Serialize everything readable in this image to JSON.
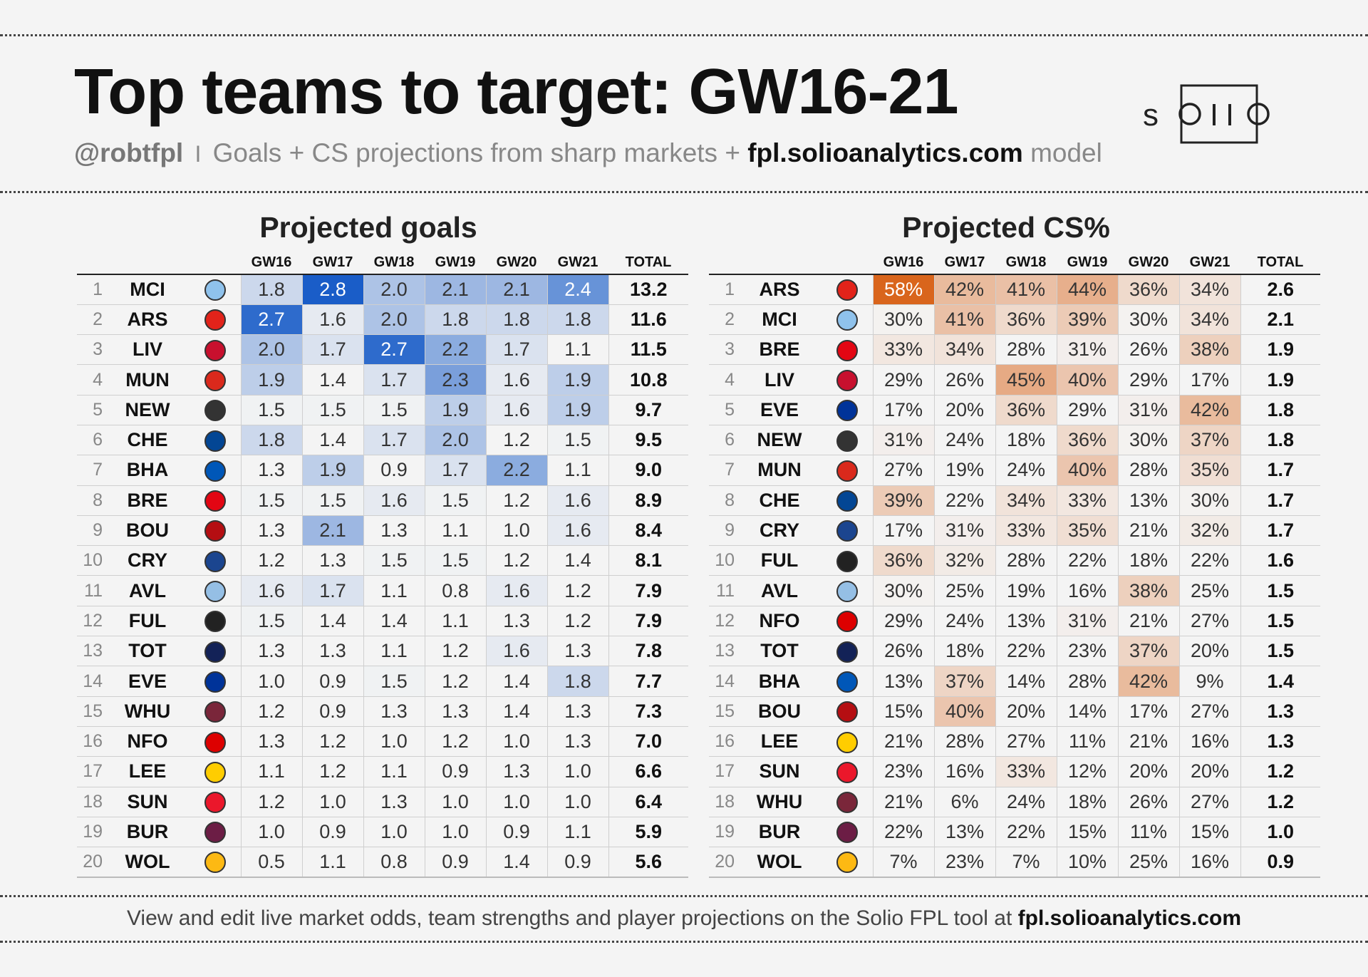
{
  "header": {
    "title": "Top teams to target: GW16-21",
    "handle": "@robtfpl",
    "separator": "I",
    "subtitle_text": "Goals + CS projections from sharp markets + ",
    "site": "fpl.solioanalytics.com",
    "subtitle_end": " model",
    "brand": "solio"
  },
  "footer": {
    "text": "View and edit live market odds, team strengths and player projections on the Solio FPL tool at ",
    "site": "fpl.solioanalytics.com"
  },
  "colors": {
    "goals_accent": "#1a5dc8",
    "cs_accent": "#d9651c"
  },
  "chart_data": [
    {
      "type": "table",
      "title": "Projected goals",
      "columns": [
        "GW16",
        "GW17",
        "GW18",
        "GW19",
        "GW20",
        "GW21",
        "TOTAL"
      ],
      "rows": [
        {
          "rank": "1",
          "team": "MCI",
          "crest": "#8fc2ec",
          "values": [
            "1.8",
            "2.8",
            "2.0",
            "2.1",
            "2.1",
            "2.4"
          ],
          "total": "13.2"
        },
        {
          "rank": "2",
          "team": "ARS",
          "crest": "#e2231a",
          "values": [
            "2.7",
            "1.6",
            "2.0",
            "1.8",
            "1.8",
            "1.8"
          ],
          "total": "11.6"
        },
        {
          "rank": "3",
          "team": "LIV",
          "crest": "#c8102e",
          "values": [
            "2.0",
            "1.7",
            "2.7",
            "2.2",
            "1.7",
            "1.1"
          ],
          "total": "11.5"
        },
        {
          "rank": "4",
          "team": "MUN",
          "crest": "#da291c",
          "values": [
            "1.9",
            "1.4",
            "1.7",
            "2.3",
            "1.6",
            "1.9"
          ],
          "total": "10.8"
        },
        {
          "rank": "5",
          "team": "NEW",
          "crest": "#333333",
          "values": [
            "1.5",
            "1.5",
            "1.5",
            "1.9",
            "1.6",
            "1.9"
          ],
          "total": "9.7"
        },
        {
          "rank": "6",
          "team": "CHE",
          "crest": "#034694",
          "values": [
            "1.8",
            "1.4",
            "1.7",
            "2.0",
            "1.2",
            "1.5"
          ],
          "total": "9.5"
        },
        {
          "rank": "7",
          "team": "BHA",
          "crest": "#0057b8",
          "values": [
            "1.3",
            "1.9",
            "0.9",
            "1.7",
            "2.2",
            "1.1"
          ],
          "total": "9.0"
        },
        {
          "rank": "8",
          "team": "BRE",
          "crest": "#e30613",
          "values": [
            "1.5",
            "1.5",
            "1.6",
            "1.5",
            "1.2",
            "1.6"
          ],
          "total": "8.9"
        },
        {
          "rank": "9",
          "team": "BOU",
          "crest": "#b50e12",
          "values": [
            "1.3",
            "2.1",
            "1.3",
            "1.1",
            "1.0",
            "1.6"
          ],
          "total": "8.4"
        },
        {
          "rank": "10",
          "team": "CRY",
          "crest": "#1b458f",
          "values": [
            "1.2",
            "1.3",
            "1.5",
            "1.5",
            "1.2",
            "1.4"
          ],
          "total": "8.1"
        },
        {
          "rank": "11",
          "team": "AVL",
          "crest": "#95bfe5",
          "values": [
            "1.6",
            "1.7",
            "1.1",
            "0.8",
            "1.6",
            "1.2"
          ],
          "total": "7.9"
        },
        {
          "rank": "12",
          "team": "FUL",
          "crest": "#222222",
          "values": [
            "1.5",
            "1.4",
            "1.4",
            "1.1",
            "1.3",
            "1.2"
          ],
          "total": "7.9"
        },
        {
          "rank": "13",
          "team": "TOT",
          "crest": "#132257",
          "values": [
            "1.3",
            "1.3",
            "1.1",
            "1.2",
            "1.6",
            "1.3"
          ],
          "total": "7.8"
        },
        {
          "rank": "14",
          "team": "EVE",
          "crest": "#003399",
          "values": [
            "1.0",
            "0.9",
            "1.5",
            "1.2",
            "1.4",
            "1.8"
          ],
          "total": "7.7"
        },
        {
          "rank": "15",
          "team": "WHU",
          "crest": "#7a263a",
          "values": [
            "1.2",
            "0.9",
            "1.3",
            "1.3",
            "1.4",
            "1.3"
          ],
          "total": "7.3"
        },
        {
          "rank": "16",
          "team": "NFO",
          "crest": "#dd0000",
          "values": [
            "1.3",
            "1.2",
            "1.0",
            "1.2",
            "1.0",
            "1.3"
          ],
          "total": "7.0"
        },
        {
          "rank": "17",
          "team": "LEE",
          "crest": "#ffcd00",
          "values": [
            "1.1",
            "1.2",
            "1.1",
            "0.9",
            "1.3",
            "1.0"
          ],
          "total": "6.6"
        },
        {
          "rank": "18",
          "team": "SUN",
          "crest": "#eb172b",
          "values": [
            "1.2",
            "1.0",
            "1.3",
            "1.0",
            "1.0",
            "1.0"
          ],
          "total": "6.4"
        },
        {
          "rank": "19",
          "team": "BUR",
          "crest": "#6c1d45",
          "values": [
            "1.0",
            "0.9",
            "1.0",
            "1.0",
            "0.9",
            "1.1"
          ],
          "total": "5.9"
        },
        {
          "rank": "20",
          "team": "WOL",
          "crest": "#fdb913",
          "values": [
            "0.5",
            "1.1",
            "0.8",
            "0.9",
            "1.4",
            "0.9"
          ],
          "total": "5.6"
        }
      ]
    },
    {
      "type": "table",
      "title": "Projected CS%",
      "columns": [
        "GW16",
        "GW17",
        "GW18",
        "GW19",
        "GW20",
        "GW21",
        "TOTAL"
      ],
      "rows": [
        {
          "rank": "1",
          "team": "ARS",
          "crest": "#e2231a",
          "values": [
            "58%",
            "42%",
            "41%",
            "44%",
            "36%",
            "34%"
          ],
          "total": "2.6"
        },
        {
          "rank": "2",
          "team": "MCI",
          "crest": "#8fc2ec",
          "values": [
            "30%",
            "41%",
            "36%",
            "39%",
            "30%",
            "34%"
          ],
          "total": "2.1"
        },
        {
          "rank": "3",
          "team": "BRE",
          "crest": "#e30613",
          "values": [
            "33%",
            "34%",
            "28%",
            "31%",
            "26%",
            "38%"
          ],
          "total": "1.9"
        },
        {
          "rank": "4",
          "team": "LIV",
          "crest": "#c8102e",
          "values": [
            "29%",
            "26%",
            "45%",
            "40%",
            "29%",
            "17%"
          ],
          "total": "1.9"
        },
        {
          "rank": "5",
          "team": "EVE",
          "crest": "#003399",
          "values": [
            "17%",
            "20%",
            "36%",
            "29%",
            "31%",
            "42%"
          ],
          "total": "1.8"
        },
        {
          "rank": "6",
          "team": "NEW",
          "crest": "#333333",
          "values": [
            "31%",
            "24%",
            "18%",
            "36%",
            "30%",
            "37%"
          ],
          "total": "1.8"
        },
        {
          "rank": "7",
          "team": "MUN",
          "crest": "#da291c",
          "values": [
            "27%",
            "19%",
            "24%",
            "40%",
            "28%",
            "35%"
          ],
          "total": "1.7"
        },
        {
          "rank": "8",
          "team": "CHE",
          "crest": "#034694",
          "values": [
            "39%",
            "22%",
            "34%",
            "33%",
            "13%",
            "30%"
          ],
          "total": "1.7"
        },
        {
          "rank": "9",
          "team": "CRY",
          "crest": "#1b458f",
          "values": [
            "17%",
            "31%",
            "33%",
            "35%",
            "21%",
            "32%"
          ],
          "total": "1.7"
        },
        {
          "rank": "10",
          "team": "FUL",
          "crest": "#222222",
          "values": [
            "36%",
            "32%",
            "28%",
            "22%",
            "18%",
            "22%"
          ],
          "total": "1.6"
        },
        {
          "rank": "11",
          "team": "AVL",
          "crest": "#95bfe5",
          "values": [
            "30%",
            "25%",
            "19%",
            "16%",
            "38%",
            "25%"
          ],
          "total": "1.5"
        },
        {
          "rank": "12",
          "team": "NFO",
          "crest": "#dd0000",
          "values": [
            "29%",
            "24%",
            "13%",
            "31%",
            "21%",
            "27%"
          ],
          "total": "1.5"
        },
        {
          "rank": "13",
          "team": "TOT",
          "crest": "#132257",
          "values": [
            "26%",
            "18%",
            "22%",
            "23%",
            "37%",
            "20%"
          ],
          "total": "1.5"
        },
        {
          "rank": "14",
          "team": "BHA",
          "crest": "#0057b8",
          "values": [
            "13%",
            "37%",
            "14%",
            "28%",
            "42%",
            "9%"
          ],
          "total": "1.4"
        },
        {
          "rank": "15",
          "team": "BOU",
          "crest": "#b50e12",
          "values": [
            "15%",
            "40%",
            "20%",
            "14%",
            "17%",
            "27%"
          ],
          "total": "1.3"
        },
        {
          "rank": "16",
          "team": "LEE",
          "crest": "#ffcd00",
          "values": [
            "21%",
            "28%",
            "27%",
            "11%",
            "21%",
            "16%"
          ],
          "total": "1.3"
        },
        {
          "rank": "17",
          "team": "SUN",
          "crest": "#eb172b",
          "values": [
            "23%",
            "16%",
            "33%",
            "12%",
            "20%",
            "20%"
          ],
          "total": "1.2"
        },
        {
          "rank": "18",
          "team": "WHU",
          "crest": "#7a263a",
          "values": [
            "21%",
            "6%",
            "24%",
            "18%",
            "26%",
            "27%"
          ],
          "total": "1.2"
        },
        {
          "rank": "19",
          "team": "BUR",
          "crest": "#6c1d45",
          "values": [
            "22%",
            "13%",
            "22%",
            "15%",
            "11%",
            "15%"
          ],
          "total": "1.0"
        },
        {
          "rank": "20",
          "team": "WOL",
          "crest": "#fdb913",
          "values": [
            "7%",
            "23%",
            "7%",
            "10%",
            "25%",
            "16%"
          ],
          "total": "0.9"
        }
      ]
    }
  ]
}
